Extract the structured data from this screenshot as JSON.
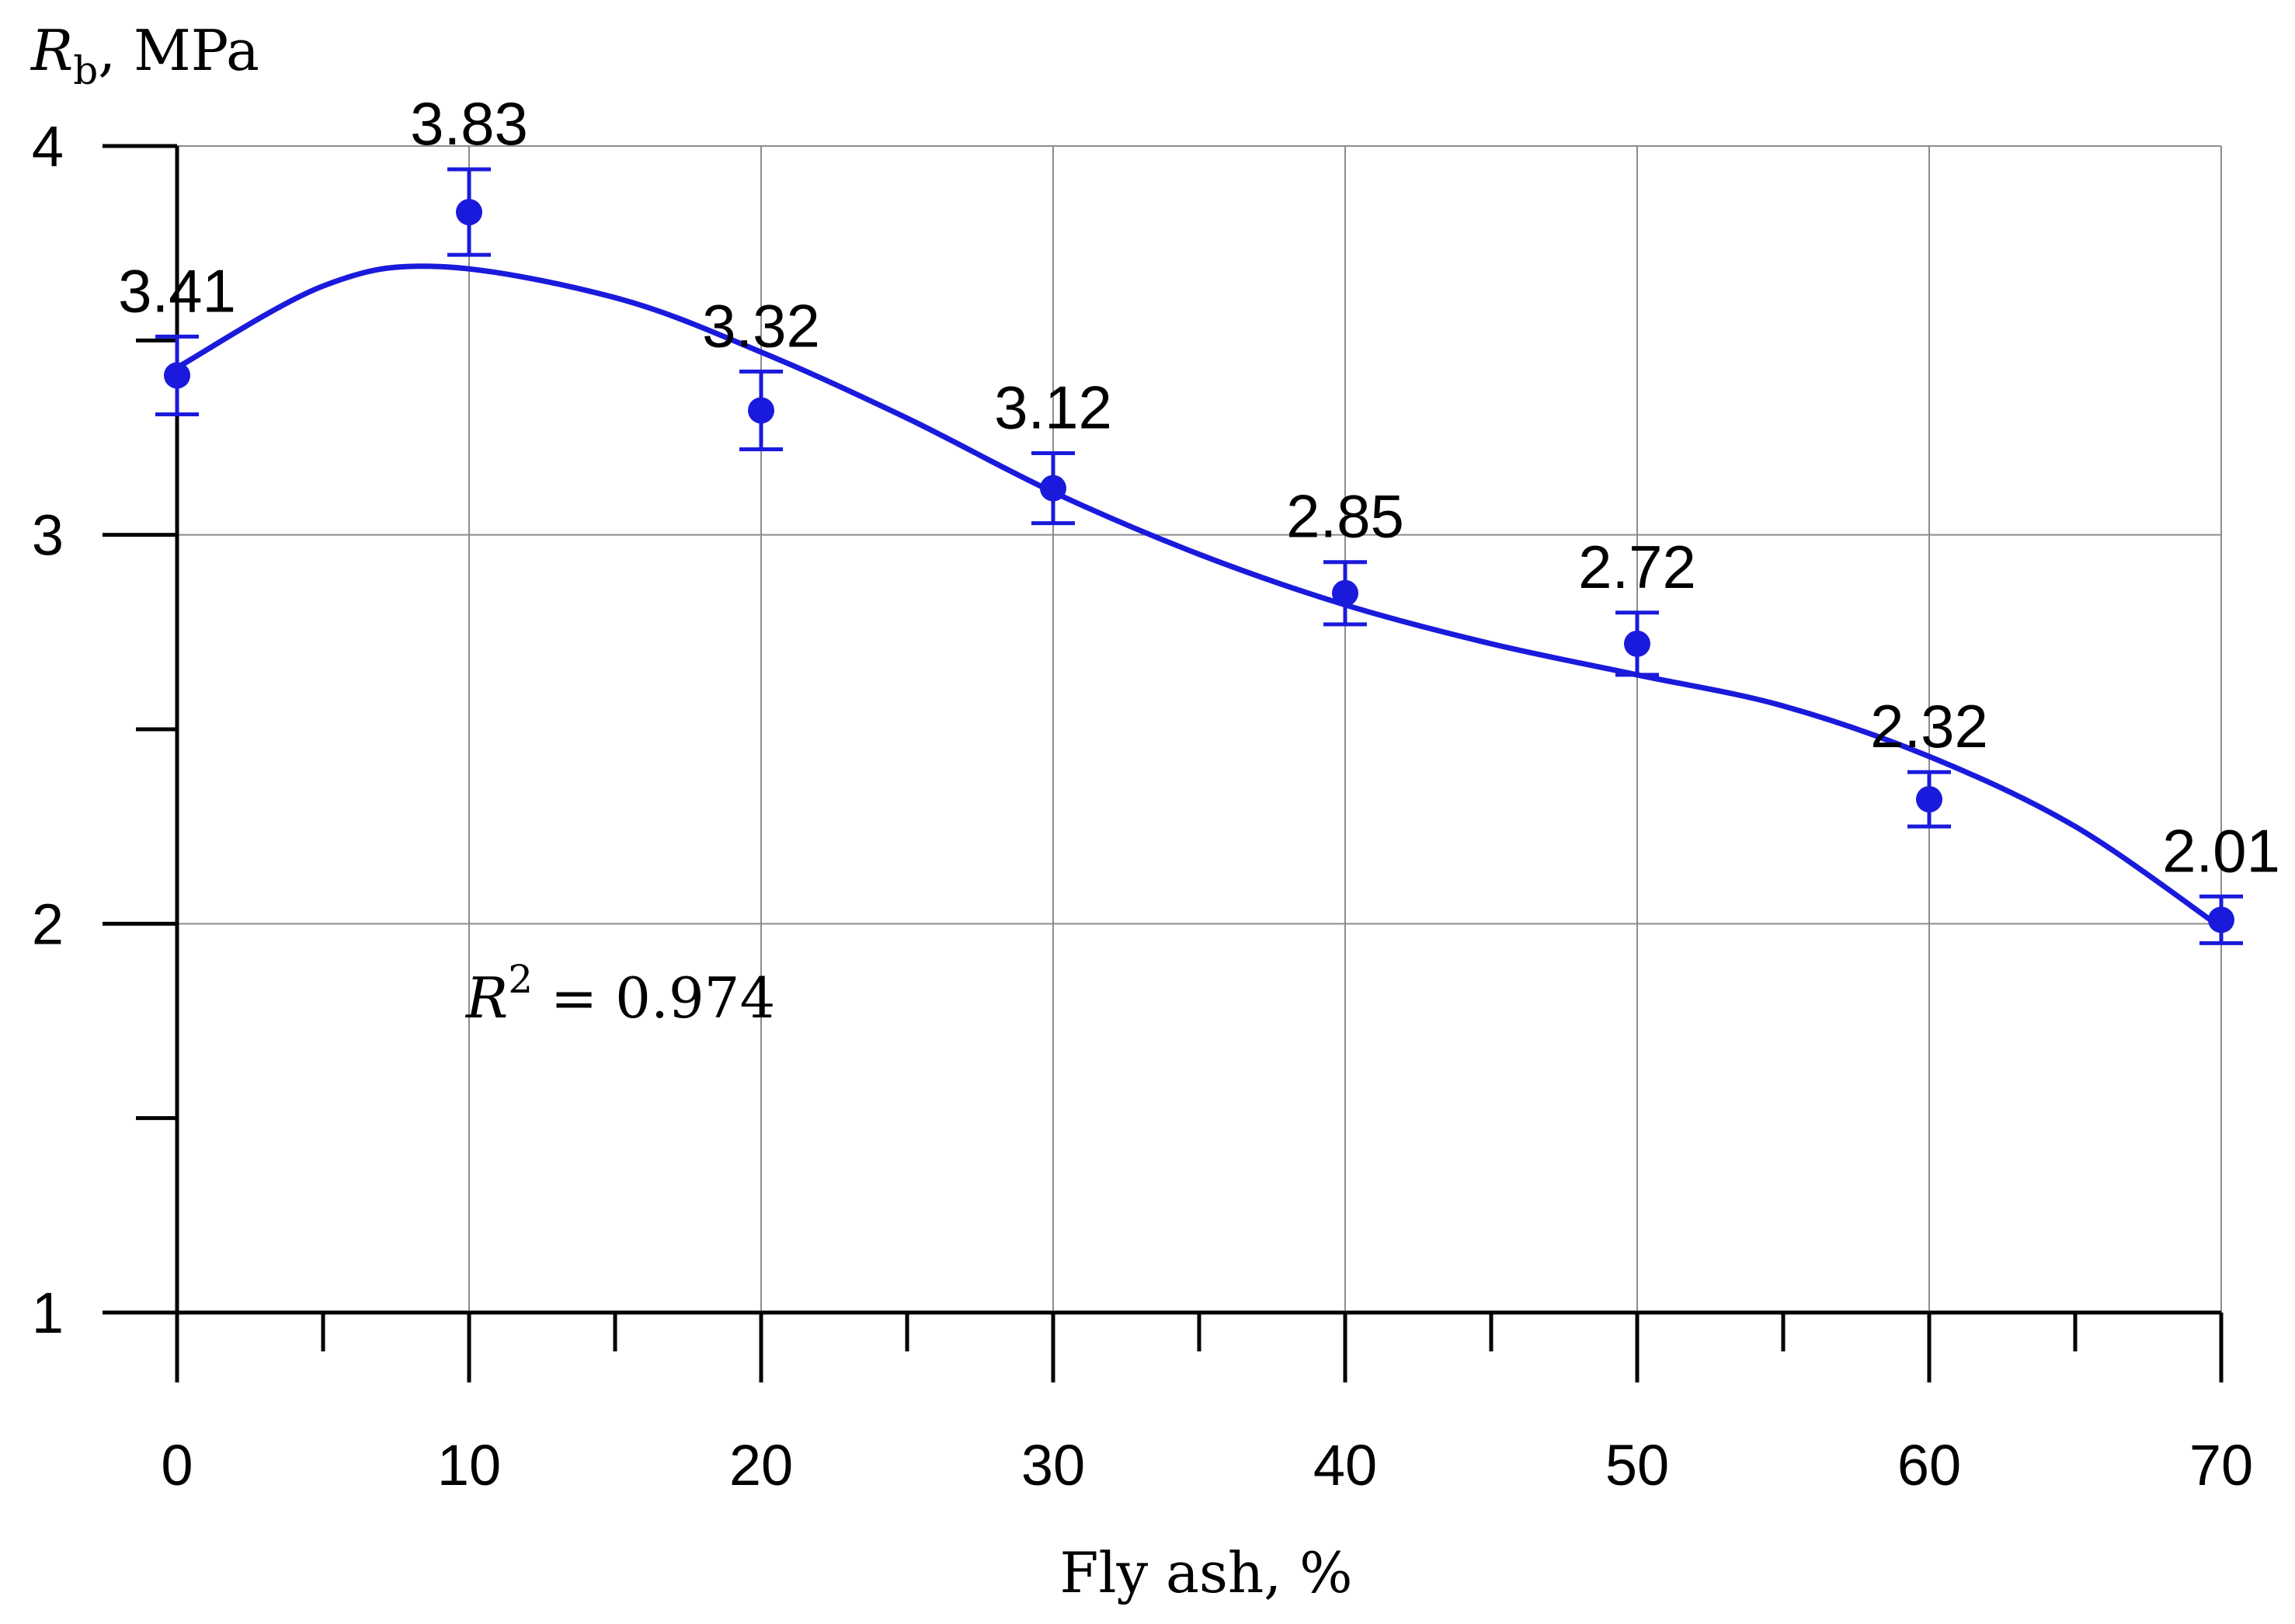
{
  "chart_data": {
    "type": "scatter",
    "title": "",
    "xlabel": "Fly ash, %",
    "ylabel": {
      "symbol": "R",
      "subscript": "b",
      "unit": ", MPa"
    },
    "xlim": [
      0,
      70
    ],
    "ylim": [
      1,
      4
    ],
    "x_ticks": [
      0,
      10,
      20,
      30,
      40,
      50,
      60,
      70
    ],
    "x_tick_labels": [
      "0",
      "10",
      "20",
      "30",
      "40",
      "50",
      "60",
      "70"
    ],
    "x_minor_ticks": [
      5,
      15,
      25,
      35,
      45,
      55,
      65
    ],
    "y_ticks": [
      1,
      2,
      3,
      4
    ],
    "y_tick_labels": [
      "1",
      "2",
      "3",
      "4"
    ],
    "y_minor_ticks": [
      1.5,
      2.5,
      3.5
    ],
    "grid": true,
    "series": [
      {
        "name": "Rb",
        "x": [
          0,
          10,
          20,
          30,
          40,
          50,
          60,
          70
        ],
        "y": [
          3.41,
          3.83,
          3.32,
          3.12,
          2.85,
          2.72,
          2.32,
          2.01
        ],
        "error": [
          0.1,
          0.11,
          0.1,
          0.09,
          0.08,
          0.08,
          0.07,
          0.06
        ],
        "data_labels": [
          "3.41",
          "3.83",
          "3.32",
          "3.12",
          "2.85",
          "2.72",
          "2.32",
          "2.01"
        ],
        "color": "#1a1adc"
      }
    ],
    "trendline": {
      "color": "#1a1adc",
      "x": [
        0,
        5,
        9,
        15,
        20,
        25,
        30,
        35,
        40,
        45,
        50,
        55,
        60,
        65,
        70
      ],
      "y": [
        3.43,
        3.64,
        3.69,
        3.61,
        3.47,
        3.3,
        3.11,
        2.95,
        2.82,
        2.72,
        2.64,
        2.56,
        2.43,
        2.25,
        1.99
      ]
    },
    "annotation": {
      "symbol": "R",
      "superscript": "2",
      "text": " = 0.974"
    }
  }
}
